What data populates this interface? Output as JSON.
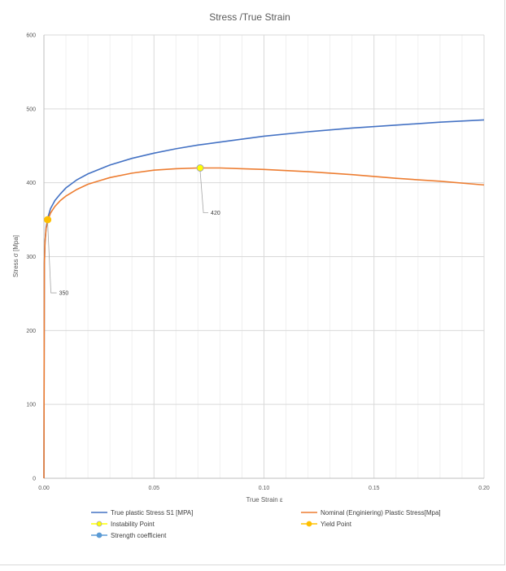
{
  "chart_data": {
    "type": "line",
    "title": "Stress /True Strain",
    "xlabel": "True Strain ε",
    "ylabel": "Stress σ [Mpa]",
    "xlim": [
      0,
      0.2
    ],
    "ylim": [
      0,
      600
    ],
    "x_ticks": [
      "0.00",
      "0.05",
      "0.10",
      "0.15",
      "0.20"
    ],
    "y_ticks": [
      "0",
      "100",
      "200",
      "300",
      "400",
      "500",
      "600"
    ],
    "grid": true,
    "legend_position": "bottom",
    "series": [
      {
        "name": "True plastic Stress S1 [MPA]",
        "color": "#4472c4",
        "x": [
          0.0,
          0.0002,
          0.0005,
          0.001,
          0.002,
          0.003,
          0.005,
          0.0075,
          0.01,
          0.015,
          0.02,
          0.03,
          0.04,
          0.05,
          0.06,
          0.07,
          0.08,
          0.09,
          0.1,
          0.12,
          0.14,
          0.16,
          0.18,
          0.2
        ],
        "y": [
          0,
          290,
          320,
          340,
          355,
          365,
          376,
          385,
          393,
          404,
          412,
          424,
          433,
          440,
          446,
          451,
          455,
          459,
          463,
          469,
          474,
          478,
          482,
          485
        ]
      },
      {
        "name": "Nominal (Enginiering) Plastic Stress[Mpa]",
        "color": "#ed7d31",
        "x": [
          0.0,
          0.0002,
          0.0005,
          0.001,
          0.002,
          0.003,
          0.005,
          0.0075,
          0.01,
          0.015,
          0.02,
          0.03,
          0.04,
          0.05,
          0.06,
          0.07,
          0.08,
          0.09,
          0.1,
          0.12,
          0.14,
          0.16,
          0.18,
          0.2
        ],
        "y": [
          0,
          290,
          320,
          338,
          351,
          359,
          368,
          376,
          382,
          391,
          398,
          407,
          413,
          417,
          419,
          420,
          420,
          419,
          418,
          415,
          411,
          406,
          402,
          397
        ]
      },
      {
        "name": "Instability Point",
        "color": "#ffff00",
        "marker_edge": "#a5a5a5",
        "x": [
          0.071
        ],
        "y": [
          420
        ],
        "label": "420"
      },
      {
        "name": "Yield Point",
        "color": "#ffc000",
        "x": [
          0.0017
        ],
        "y": [
          350
        ],
        "label": "350"
      },
      {
        "name": "Strength coefficient",
        "color": "#5b9bd5",
        "x": [],
        "y": []
      }
    ]
  }
}
